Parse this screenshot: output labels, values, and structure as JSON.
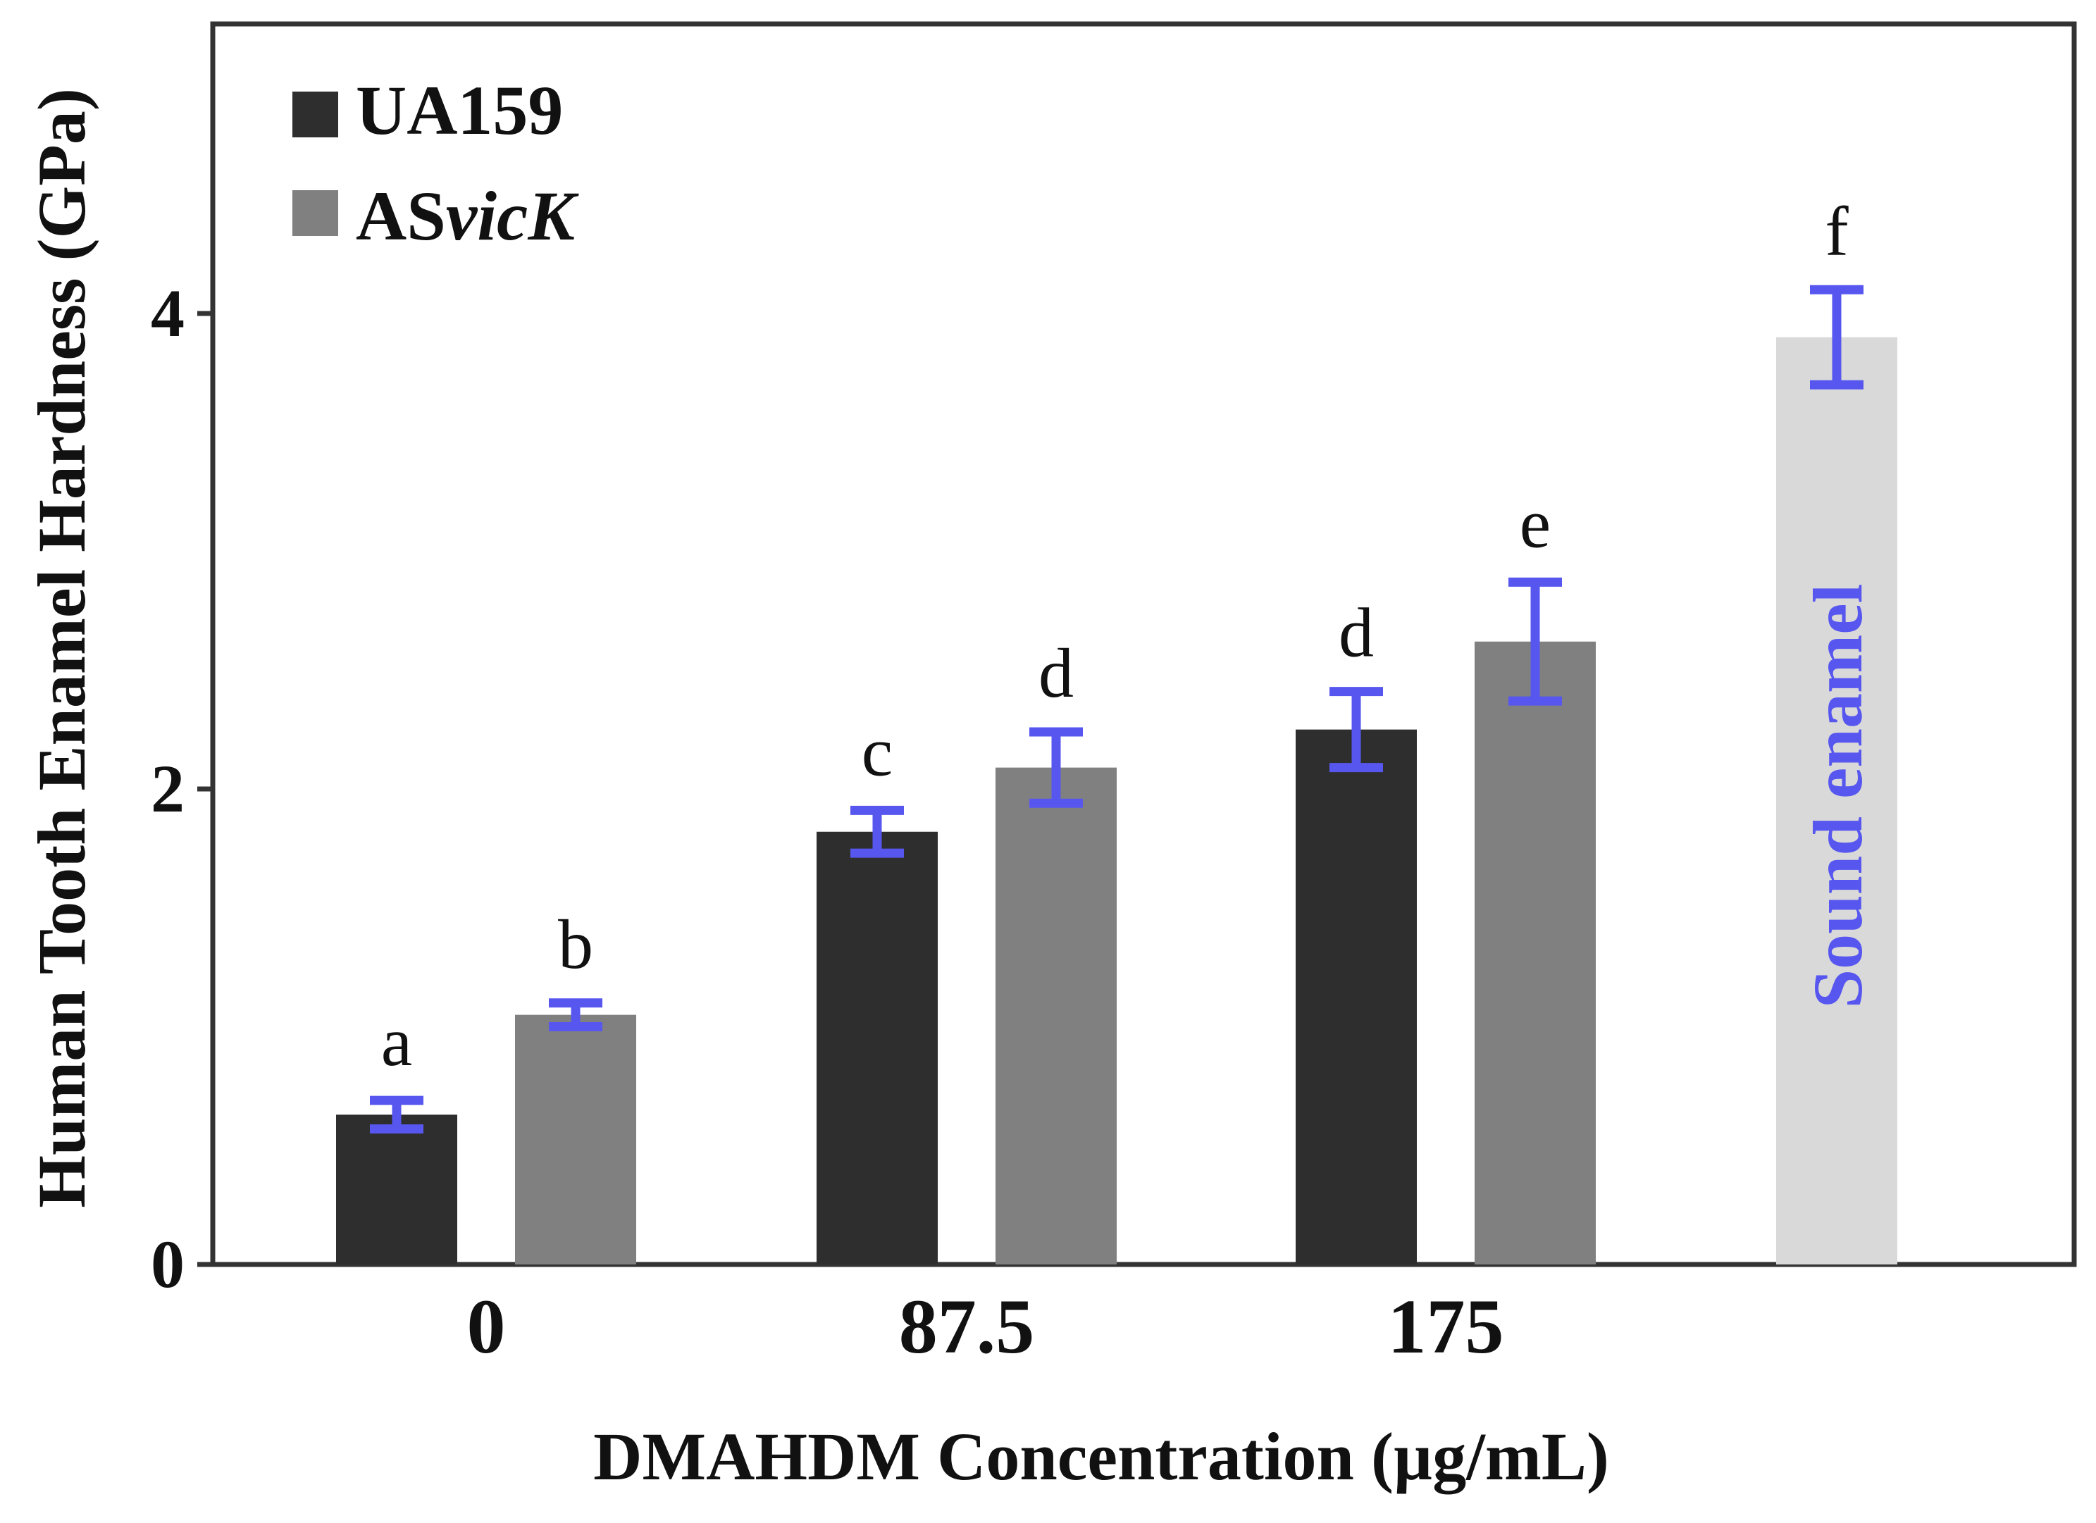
{
  "chart_data": {
    "type": "bar",
    "title": "",
    "xlabel": "DMAHDM Concentration (µg/mL)",
    "ylabel": "Human Tooth Enamel Hardness (GPa)",
    "ylim": [
      0,
      5.2
    ],
    "yticks": [
      0,
      2,
      4
    ],
    "grid": false,
    "legend_position": "top-left",
    "categories": [
      "0",
      "87.5",
      "175"
    ],
    "series": [
      {
        "name_main": "UA159",
        "name_italic": "",
        "color": "#2e2e2e",
        "values": [
          0.63,
          1.82,
          2.25
        ],
        "errors": [
          0.06,
          0.09,
          0.16
        ],
        "labels": [
          "a",
          "c",
          "d"
        ]
      },
      {
        "name_main": "AS",
        "name_italic": "vicK",
        "color": "#808080",
        "values": [
          1.05,
          2.09,
          2.62
        ],
        "errors": [
          0.05,
          0.15,
          0.25
        ],
        "labels": [
          "b",
          "d",
          "e"
        ]
      }
    ],
    "reference_bar": {
      "label": "Sound enamel",
      "value": 3.9,
      "error": 0.2,
      "letter": "f",
      "color": "#d9d9d9",
      "text_color": "#5757f0"
    },
    "error_bar_color": "#5757f0"
  }
}
